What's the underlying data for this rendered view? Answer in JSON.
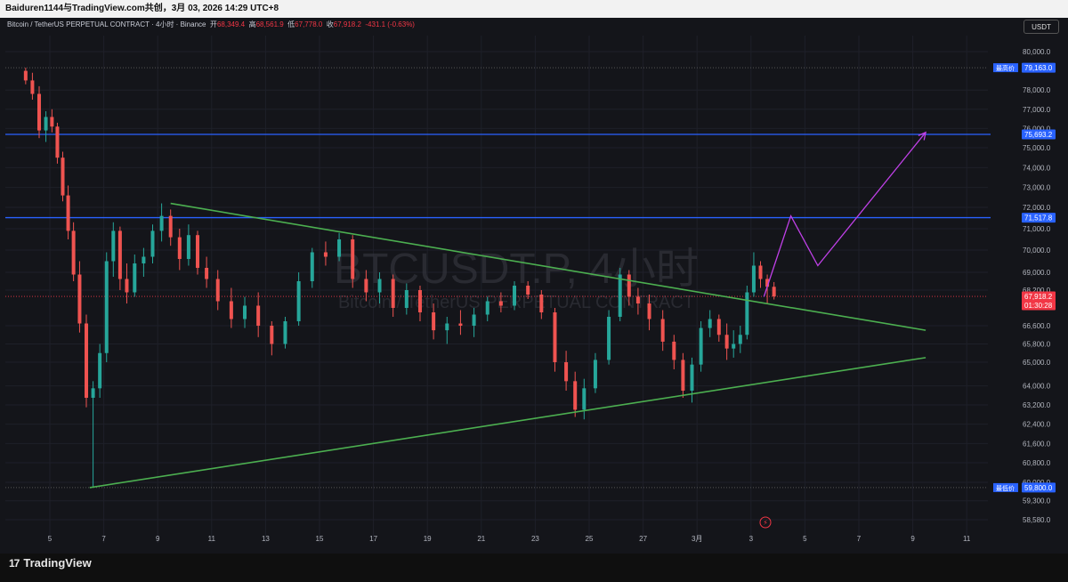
{
  "window": {
    "caption": "Baiduren1144与TradingView.com共创，3月 03, 2026 14:29 UTC+8"
  },
  "legend": {
    "symbol": "Bitcoin / TetherUS PERPETUAL CONTRACT · 4小时 · Binance",
    "open_label": "开",
    "open": "68,349.4",
    "high_label": "高",
    "high": "68,561.9",
    "low_label": "低",
    "low": "67,778.0",
    "close_label": "收",
    "close": "67,918.2",
    "change": "-431.1 (-0.63%)"
  },
  "currency_button": "USDT",
  "watermark": {
    "symbol": "BTCUSDT.P, 4小时",
    "description": "Bitcoin / TetherUS PERPETUAL CONTRACT"
  },
  "price_scale": [
    "80,000.0",
    "78,000.0",
    "77,000.0",
    "76,000.0",
    "75,000.0",
    "74,000.0",
    "73,000.0",
    "72,000.0",
    "71,000.0",
    "70,000.0",
    "69,000.0",
    "68,200.0",
    "66,600.0",
    "65,800.0",
    "65,000.0",
    "64,000.0",
    "63,200.0",
    "62,400.0",
    "61,600.0",
    "60,800.0",
    "60,000.0",
    "59,300.0",
    "58,580.0"
  ],
  "price_tags": {
    "high_label": "最高价",
    "high": "79,163.0",
    "level_upper": "75,693.2",
    "level_lower": "71,517.8",
    "last_price": "67,918.2",
    "countdown": "01:30:28",
    "low_label": "最低价",
    "low": "59,800.0"
  },
  "time_scale": [
    "5",
    "7",
    "9",
    "11",
    "13",
    "15",
    "17",
    "19",
    "21",
    "23",
    "25",
    "27",
    "3月",
    "3",
    "5",
    "7",
    "9",
    "11"
  ],
  "brand": {
    "name": "TradingView"
  },
  "colors": {
    "up": "#26a69a",
    "down": "#ef5350",
    "trend": "#4caf50",
    "level": "#2962ff",
    "projection": "#c040e8"
  },
  "chart_data": {
    "type": "candlestick",
    "timeframe": "4h",
    "ylim": [
      58300,
      80500
    ],
    "grid": true,
    "candles": [
      {
        "x": "2026-02-04",
        "o": 79000,
        "h": 79163,
        "l": 78300,
        "c": 78500
      },
      {
        "x": "2026-02-04",
        "o": 78500,
        "h": 78900,
        "l": 77500,
        "c": 77800
      },
      {
        "x": "2026-02-04",
        "o": 77800,
        "h": 78200,
        "l": 75500,
        "c": 75900
      },
      {
        "x": "2026-02-04",
        "o": 75900,
        "h": 76900,
        "l": 75300,
        "c": 76600
      },
      {
        "x": "2026-02-05",
        "o": 76600,
        "h": 77000,
        "l": 75800,
        "c": 76100
      },
      {
        "x": "2026-02-05",
        "o": 76100,
        "h": 76300,
        "l": 74200,
        "c": 74500
      },
      {
        "x": "2026-02-05",
        "o": 74500,
        "h": 74800,
        "l": 72300,
        "c": 72600
      },
      {
        "x": "2026-02-05",
        "o": 72600,
        "h": 73100,
        "l": 70500,
        "c": 70900
      },
      {
        "x": "2026-02-05",
        "o": 70900,
        "h": 71300,
        "l": 68600,
        "c": 68900
      },
      {
        "x": "2026-02-06",
        "o": 68900,
        "h": 69500,
        "l": 66300,
        "c": 66700
      },
      {
        "x": "2026-02-06",
        "o": 66700,
        "h": 67100,
        "l": 63100,
        "c": 63500
      },
      {
        "x": "2026-02-06",
        "o": 63500,
        "h": 64200,
        "l": 59800,
        "c": 63900
      },
      {
        "x": "2026-02-06",
        "o": 63900,
        "h": 65800,
        "l": 63500,
        "c": 65400
      },
      {
        "x": "2026-02-07",
        "o": 65400,
        "h": 69900,
        "l": 65000,
        "c": 69500
      },
      {
        "x": "2026-02-07",
        "o": 69500,
        "h": 71300,
        "l": 68800,
        "c": 70900
      },
      {
        "x": "2026-02-07",
        "o": 70900,
        "h": 71100,
        "l": 68200,
        "c": 68700
      },
      {
        "x": "2026-02-07",
        "o": 68700,
        "h": 69400,
        "l": 67600,
        "c": 68100
      },
      {
        "x": "2026-02-08",
        "o": 68100,
        "h": 69800,
        "l": 67900,
        "c": 69400
      },
      {
        "x": "2026-02-08",
        "o": 69400,
        "h": 70100,
        "l": 68800,
        "c": 69700
      },
      {
        "x": "2026-02-08",
        "o": 69700,
        "h": 71200,
        "l": 69400,
        "c": 70900
      },
      {
        "x": "2026-02-09",
        "o": 70900,
        "h": 72200,
        "l": 70400,
        "c": 71600
      },
      {
        "x": "2026-02-09",
        "o": 71600,
        "h": 71900,
        "l": 70200,
        "c": 70600
      },
      {
        "x": "2026-02-09",
        "o": 70600,
        "h": 71000,
        "l": 69100,
        "c": 69600
      },
      {
        "x": "2026-02-10",
        "o": 69600,
        "h": 71200,
        "l": 69300,
        "c": 70700
      },
      {
        "x": "2026-02-10",
        "o": 70700,
        "h": 70900,
        "l": 68900,
        "c": 69200
      },
      {
        "x": "2026-02-10",
        "o": 69200,
        "h": 69700,
        "l": 68300,
        "c": 68700
      },
      {
        "x": "2026-02-11",
        "o": 68700,
        "h": 69100,
        "l": 67300,
        "c": 67700
      },
      {
        "x": "2026-02-11",
        "o": 67700,
        "h": 68300,
        "l": 66500,
        "c": 66900
      },
      {
        "x": "2026-02-12",
        "o": 66900,
        "h": 67900,
        "l": 66500,
        "c": 67500
      },
      {
        "x": "2026-02-12",
        "o": 67500,
        "h": 68100,
        "l": 66100,
        "c": 66600
      },
      {
        "x": "2026-02-13",
        "o": 66600,
        "h": 66800,
        "l": 65300,
        "c": 65800
      },
      {
        "x": "2026-02-13",
        "o": 65800,
        "h": 67000,
        "l": 65600,
        "c": 66800
      },
      {
        "x": "2026-02-14",
        "o": 66800,
        "h": 69000,
        "l": 66600,
        "c": 68600
      },
      {
        "x": "2026-02-14",
        "o": 68600,
        "h": 70100,
        "l": 68300,
        "c": 69900
      },
      {
        "x": "2026-02-15",
        "o": 69900,
        "h": 70400,
        "l": 69300,
        "c": 69700
      },
      {
        "x": "2026-02-15",
        "o": 69700,
        "h": 70800,
        "l": 69500,
        "c": 70500
      },
      {
        "x": "2026-02-16",
        "o": 70500,
        "h": 70700,
        "l": 68300,
        "c": 68700
      },
      {
        "x": "2026-02-16",
        "o": 68700,
        "h": 69100,
        "l": 67700,
        "c": 68100
      },
      {
        "x": "2026-02-17",
        "o": 68100,
        "h": 69000,
        "l": 67600,
        "c": 68700
      },
      {
        "x": "2026-02-17",
        "o": 68700,
        "h": 68900,
        "l": 67000,
        "c": 67400
      },
      {
        "x": "2026-02-18",
        "o": 67400,
        "h": 68500,
        "l": 67100,
        "c": 68200
      },
      {
        "x": "2026-02-18",
        "o": 68200,
        "h": 68400,
        "l": 66800,
        "c": 67200
      },
      {
        "x": "2026-02-19",
        "o": 67200,
        "h": 67600,
        "l": 66000,
        "c": 66400
      },
      {
        "x": "2026-02-19",
        "o": 66400,
        "h": 67000,
        "l": 65800,
        "c": 66700
      },
      {
        "x": "2026-02-20",
        "o": 66700,
        "h": 67300,
        "l": 66200,
        "c": 66600
      },
      {
        "x": "2026-02-20",
        "o": 66600,
        "h": 67400,
        "l": 66100,
        "c": 67100
      },
      {
        "x": "2026-02-21",
        "o": 67100,
        "h": 67900,
        "l": 66800,
        "c": 67700
      },
      {
        "x": "2026-02-21",
        "o": 67700,
        "h": 68100,
        "l": 67200,
        "c": 67500
      },
      {
        "x": "2026-02-22",
        "o": 67500,
        "h": 68600,
        "l": 67300,
        "c": 68400
      },
      {
        "x": "2026-02-22",
        "o": 68400,
        "h": 68600,
        "l": 67800,
        "c": 68000
      },
      {
        "x": "2026-02-23",
        "o": 68000,
        "h": 68200,
        "l": 66900,
        "c": 67200
      },
      {
        "x": "2026-02-23",
        "o": 67200,
        "h": 67400,
        "l": 64600,
        "c": 65000
      },
      {
        "x": "2026-02-24",
        "o": 65000,
        "h": 65500,
        "l": 63800,
        "c": 64200
      },
      {
        "x": "2026-02-24",
        "o": 64200,
        "h": 64600,
        "l": 62700,
        "c": 63000
      },
      {
        "x": "2026-02-24",
        "o": 63000,
        "h": 64300,
        "l": 62600,
        "c": 63900
      },
      {
        "x": "2026-02-25",
        "o": 63900,
        "h": 65400,
        "l": 63700,
        "c": 65100
      },
      {
        "x": "2026-02-25",
        "o": 65100,
        "h": 67300,
        "l": 64900,
        "c": 67000
      },
      {
        "x": "2026-02-26",
        "o": 67000,
        "h": 69200,
        "l": 66800,
        "c": 68900
      },
      {
        "x": "2026-02-26",
        "o": 68900,
        "h": 69100,
        "l": 67500,
        "c": 67900
      },
      {
        "x": "2026-02-26",
        "o": 67900,
        "h": 68300,
        "l": 67100,
        "c": 67600
      },
      {
        "x": "2026-02-27",
        "o": 67600,
        "h": 68000,
        "l": 66400,
        "c": 66900
      },
      {
        "x": "2026-02-27",
        "o": 66900,
        "h": 67300,
        "l": 65500,
        "c": 65900
      },
      {
        "x": "2026-02-28",
        "o": 65900,
        "h": 66200,
        "l": 64700,
        "c": 65100
      },
      {
        "x": "2026-02-28",
        "o": 65100,
        "h": 65400,
        "l": 63500,
        "c": 63800
      },
      {
        "x": "2026-02-28",
        "o": 63800,
        "h": 65200,
        "l": 63300,
        "c": 64900
      },
      {
        "x": "2026-03-01",
        "o": 64900,
        "h": 66800,
        "l": 64600,
        "c": 66500
      },
      {
        "x": "2026-03-01",
        "o": 66500,
        "h": 67300,
        "l": 66100,
        "c": 66900
      },
      {
        "x": "2026-03-01",
        "o": 66900,
        "h": 67100,
        "l": 65900,
        "c": 66200
      },
      {
        "x": "2026-03-02",
        "o": 66200,
        "h": 66700,
        "l": 65100,
        "c": 65600
      },
      {
        "x": "2026-03-02",
        "o": 65600,
        "h": 66400,
        "l": 65200,
        "c": 65800
      },
      {
        "x": "2026-03-02",
        "o": 65800,
        "h": 66600,
        "l": 65400,
        "c": 66200
      },
      {
        "x": "2026-03-02",
        "o": 66200,
        "h": 68400,
        "l": 66000,
        "c": 68100
      },
      {
        "x": "2026-03-03",
        "o": 68100,
        "h": 69900,
        "l": 67900,
        "c": 69300
      },
      {
        "x": "2026-03-03",
        "o": 69300,
        "h": 69500,
        "l": 68300,
        "c": 68700
      },
      {
        "x": "2026-03-03",
        "o": 68700,
        "h": 68900,
        "l": 67600,
        "c": 68349.4
      },
      {
        "x": "2026-03-03",
        "o": 68349.4,
        "h": 68561.9,
        "l": 67778,
        "c": 67918.2
      }
    ],
    "horizontal_levels": [
      75693.2,
      71517.8
    ],
    "trendlines": [
      {
        "name": "descending resistance",
        "from": {
          "x": "2026-02-09",
          "y": 72200
        },
        "to": {
          "x": "2026-03-09",
          "y": 66400
        }
      },
      {
        "name": "ascending support",
        "from": {
          "x": "2026-02-06",
          "y": 59800
        },
        "to": {
          "x": "2026-03-09",
          "y": 65200
        }
      }
    ],
    "projection_path": [
      {
        "x": "2026-03-03",
        "y": 67900
      },
      {
        "x": "2026-03-04",
        "y": 71600
      },
      {
        "x": "2026-03-05",
        "y": 69300
      },
      {
        "x": "2026-03-09",
        "y": 75800
      }
    ]
  }
}
